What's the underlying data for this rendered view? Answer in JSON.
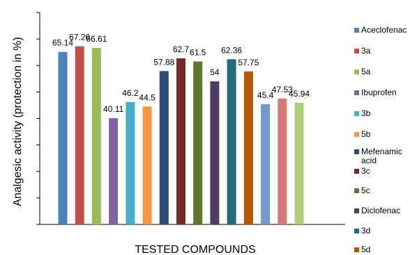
{
  "chart_data": {
    "type": "bar",
    "title": "",
    "xlabel": "TESTED COMPOUNDS",
    "ylabel": "Analgesic activity (protection  in %)",
    "ylim": [
      0,
      80
    ],
    "grid": false,
    "legend_position": "right",
    "series": [
      {
        "name": "Aceclofenac",
        "value": 65.14,
        "label": "65.14",
        "color": "#4F81BD"
      },
      {
        "name": "3a",
        "value": 67.26,
        "label": "67.26",
        "color": "#C0504D"
      },
      {
        "name": "5a",
        "value": 66.61,
        "label": "66.61",
        "color": "#9BBB59"
      },
      {
        "name": "Ibuprofen",
        "value": 40.11,
        "label": "40.11",
        "color": "#8064A2"
      },
      {
        "name": "3b",
        "value": 46.2,
        "label": "46.2",
        "color": "#4BACC6"
      },
      {
        "name": "5b",
        "value": 44.5,
        "label": "44.5",
        "color": "#F79646"
      },
      {
        "name": "Mefenamic acid",
        "value": 57.88,
        "label": "57.88",
        "color": "#2C4D75"
      },
      {
        "name": "3c",
        "value": 62.7,
        "label": "62.7",
        "color": "#772C2A"
      },
      {
        "name": "5c",
        "value": 61.5,
        "label": "61.5",
        "color": "#5F7530"
      },
      {
        "name": "Diclofenac",
        "value": 54,
        "label": "54",
        "color": "#4D3B62"
      },
      {
        "name": "3d",
        "value": 62.36,
        "label": "62.36",
        "color": "#276A7C"
      },
      {
        "name": "5d",
        "value": 57.75,
        "label": "57.75",
        "color": "#B65708"
      },
      {
        "name": "",
        "value": 45.4,
        "label": "45.4",
        "color": "#729ACA"
      },
      {
        "name": "",
        "value": 47.53,
        "label": "47.53",
        "color": "#D9787A"
      },
      {
        "name": "",
        "value": 45.94,
        "label": "45.94",
        "color": "#AFCB7C"
      }
    ]
  }
}
